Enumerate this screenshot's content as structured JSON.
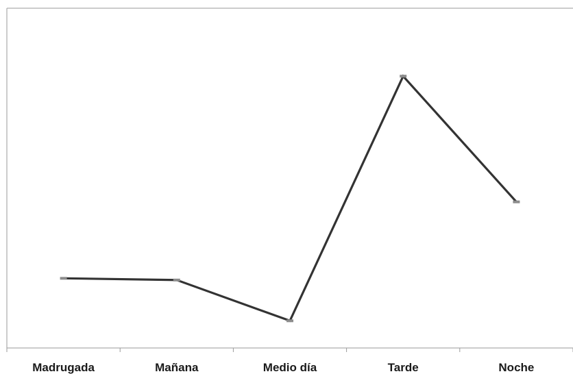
{
  "chart_data": {
    "type": "line",
    "title": "",
    "xlabel": "",
    "ylabel": "",
    "categories": [
      "Madrugada",
      "Mañana",
      "Medio día",
      "Tarde",
      "Noche"
    ],
    "series": [
      {
        "values": [
          20.5,
          20.0,
          8.0,
          80.0,
          43.0
        ]
      }
    ],
    "ylim": [
      0,
      100
    ],
    "grid": false,
    "legend": "none",
    "colors": {
      "line": "#333333",
      "marker": "#8c8c8c",
      "axis": "#9a9a9a"
    }
  }
}
